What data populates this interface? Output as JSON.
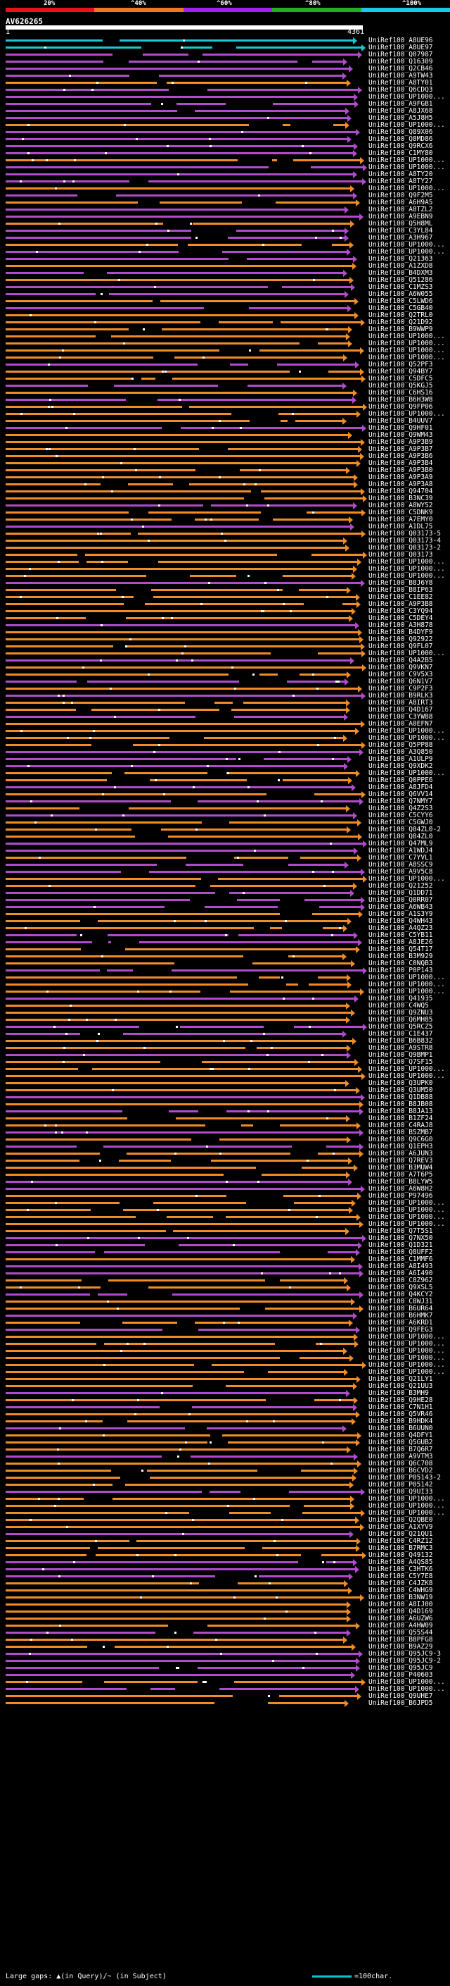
{
  "header": {
    "scale_labels": [
      "20%",
      "^40%",
      "^60%",
      "^80%",
      "^100%"
    ],
    "scale_colors": [
      "#e8101c",
      "#f07820",
      "#a020f0",
      "#20b020",
      "#20c8e8"
    ],
    "query_id": "AV626265",
    "ruler_start": "1",
    "ruler_end": "4361"
  },
  "colors": {
    "cyan": "#1cc8d0",
    "orange": "#f08c28",
    "purple": "#b04ccc",
    "gap": "#ffffff"
  },
  "hits": [
    {
      "label": "UniRef100_A8UE96",
      "color": "cyan"
    },
    {
      "label": "UniRef100_A8UE97",
      "color": "cyan"
    },
    {
      "label": "UniRef100_Q07987",
      "color": "purple"
    },
    {
      "label": "UniRef100_Q16309",
      "color": "purple"
    },
    {
      "label": "UniRef100_Q2CB46",
      "color": "purple"
    },
    {
      "label": "UniRef100_A9TW43",
      "color": "purple"
    },
    {
      "label": "UniRef100_A8TY01",
      "color": "orange"
    },
    {
      "label": "UniRef100_Q6CDQ3",
      "color": "purple"
    },
    {
      "label": "UniRef100_UP1000...",
      "color": "purple"
    },
    {
      "label": "UniRef100_A9FGB1",
      "color": "purple"
    },
    {
      "label": "UniRef100_A8JX68",
      "color": "purple"
    },
    {
      "label": "UniRef100_A5J8H5",
      "color": "purple"
    },
    {
      "label": "UniRef100_UP1000...",
      "color": "orange"
    },
    {
      "label": "UniRef100_Q89X06",
      "color": "purple"
    },
    {
      "label": "UniRef100_Q8MD86",
      "color": "purple"
    },
    {
      "label": "UniRef100_Q9RCX6",
      "color": "purple"
    },
    {
      "label": "UniRef100_C1MY80",
      "color": "purple"
    },
    {
      "label": "UniRef100_UP1000...",
      "color": "orange"
    },
    {
      "label": "UniRef100_UP1000...",
      "color": "purple"
    },
    {
      "label": "UniRef100_A8TY20",
      "color": "purple"
    },
    {
      "label": "UniRef100_A8TY27",
      "color": "purple"
    },
    {
      "label": "UniRef100_UP1000...",
      "color": "orange"
    },
    {
      "label": "UniRef100_Q9F2M5",
      "color": "purple"
    },
    {
      "label": "UniRef100_A6H9A5",
      "color": "orange"
    },
    {
      "label": "UniRef100_A8TZL2",
      "color": "purple"
    },
    {
      "label": "UniRef100_A9EBN9",
      "color": "purple"
    },
    {
      "label": "UniRef100_Q5H8ML",
      "color": "orange"
    },
    {
      "label": "UniRef100_C3YL84",
      "color": "purple"
    },
    {
      "label": "UniRef100_A3H967",
      "color": "purple"
    },
    {
      "label": "UniRef100_UP1000...",
      "color": "orange"
    },
    {
      "label": "UniRef100_UP1000...",
      "color": "purple"
    },
    {
      "label": "UniRef100_Q21363",
      "color": "purple"
    },
    {
      "label": "UniRef100_A1ZXD8",
      "color": "orange"
    },
    {
      "label": "UniRef100_B4DXM3",
      "color": "purple"
    },
    {
      "label": "UniRef100_Q51286",
      "color": "orange"
    },
    {
      "label": "UniRef100_C1MZS3",
      "color": "purple"
    },
    {
      "label": "UniRef100_A6W055",
      "color": "purple"
    },
    {
      "label": "UniRef100_C5LWD6",
      "color": "orange"
    },
    {
      "label": "UniRef100_C5GB40",
      "color": "purple"
    },
    {
      "label": "UniRef100_Q2TRL0",
      "color": "orange"
    },
    {
      "label": "UniRef100_Q21D92",
      "color": "orange"
    },
    {
      "label": "UniRef100_B9WWP9",
      "color": "orange"
    },
    {
      "label": "UniRef100_UP1000...",
      "color": "orange"
    },
    {
      "label": "UniRef100_UP1000...",
      "color": "orange"
    },
    {
      "label": "UniRef100_UP1000...",
      "color": "orange"
    },
    {
      "label": "UniRef100_UP1000...",
      "color": "orange"
    },
    {
      "label": "UniRef100_Q52PF3",
      "color": "purple"
    },
    {
      "label": "UniRef100_Q94BY7",
      "color": "orange"
    },
    {
      "label": "UniRef100_C5DFC5",
      "color": "orange"
    },
    {
      "label": "UniRef100_Q5KGJ5",
      "color": "purple"
    },
    {
      "label": "UniRef100_C6HS16",
      "color": "orange"
    },
    {
      "label": "UniRef100_B6H3W8",
      "color": "purple"
    },
    {
      "label": "UniRef100_Q9FP06",
      "color": "orange"
    },
    {
      "label": "UniRef100_UP1000...",
      "color": "orange"
    },
    {
      "label": "UniRef100_B4UUV7",
      "color": "orange"
    },
    {
      "label": "UniRef100_Q9HF01",
      "color": "purple"
    },
    {
      "label": "UniRef100_Q9WM43",
      "color": "orange"
    },
    {
      "label": "UniRef100_A9P3B9",
      "color": "orange"
    },
    {
      "label": "UniRef100_A9P3B7",
      "color": "orange"
    },
    {
      "label": "UniRef100_A9P3B6",
      "color": "orange"
    },
    {
      "label": "UniRef100_A9P3B4",
      "color": "orange"
    },
    {
      "label": "UniRef100_A9P3B0",
      "color": "orange"
    },
    {
      "label": "UniRef100_A9P3A9",
      "color": "orange"
    },
    {
      "label": "UniRef100_A9P3A8",
      "color": "orange"
    },
    {
      "label": "UniRef100_Q94704",
      "color": "orange"
    },
    {
      "label": "UniRef100_B3NC39",
      "color": "orange"
    },
    {
      "label": "UniRef100_A8WY52",
      "color": "purple"
    },
    {
      "label": "UniRef100_C5DNK9",
      "color": "orange"
    },
    {
      "label": "UniRef100_A7EMY0",
      "color": "orange"
    },
    {
      "label": "UniRef100_A1DL75",
      "color": "purple"
    },
    {
      "label": "UniRef100_Q03173-5",
      "color": "orange"
    },
    {
      "label": "UniRef100_Q03173-4",
      "color": "orange"
    },
    {
      "label": "UniRef100_Q03173-2",
      "color": "orange"
    },
    {
      "label": "UniRef100_Q03173",
      "color": "orange"
    },
    {
      "label": "UniRef100_UP1000...",
      "color": "orange"
    },
    {
      "label": "UniRef100_UP1000...",
      "color": "orange"
    },
    {
      "label": "UniRef100_UP1000...",
      "color": "orange"
    },
    {
      "label": "UniRef100_B8J6Y8",
      "color": "purple"
    },
    {
      "label": "UniRef100_B8IP63",
      "color": "orange"
    },
    {
      "label": "UniRef100_C1EE82",
      "color": "orange"
    },
    {
      "label": "UniRef100_A9P3B8",
      "color": "orange"
    },
    {
      "label": "UniRef100_C3YQ94",
      "color": "orange"
    },
    {
      "label": "UniRef100_C5DEY4",
      "color": "orange"
    },
    {
      "label": "UniRef100_A3H878",
      "color": "purple"
    },
    {
      "label": "UniRef100_B4DYF9",
      "color": "orange"
    },
    {
      "label": "UniRef100_Q92922",
      "color": "orange"
    },
    {
      "label": "UniRef100_Q9FL07",
      "color": "orange"
    },
    {
      "label": "UniRef100_UP1000...",
      "color": "orange"
    },
    {
      "label": "UniRef100_Q4A2B5",
      "color": "purple"
    },
    {
      "label": "UniRef100_Q9VKN7",
      "color": "orange"
    },
    {
      "label": "UniRef100_C9V5X3",
      "color": "orange"
    },
    {
      "label": "UniRef100_Q6N1V7",
      "color": "purple"
    },
    {
      "label": "UniRef100_C9P2F3",
      "color": "orange"
    },
    {
      "label": "UniRef100_B9RLK3",
      "color": "purple"
    },
    {
      "label": "UniRef100_A8IRT3",
      "color": "orange"
    },
    {
      "label": "UniRef100_Q4D167",
      "color": "orange"
    },
    {
      "label": "UniRef100_C3YW88",
      "color": "purple"
    },
    {
      "label": "UniRef100_A0EFN7",
      "color": "orange"
    },
    {
      "label": "UniRef100_UP1000...",
      "color": "orange"
    },
    {
      "label": "UniRef100_UP1000...",
      "color": "orange"
    },
    {
      "label": "UniRef100_Q5PP88",
      "color": "orange"
    },
    {
      "label": "UniRef100_A3Q850",
      "color": "purple"
    },
    {
      "label": "UniRef100_A1ULP9",
      "color": "purple"
    },
    {
      "label": "UniRef100_Q9XDK2",
      "color": "purple"
    },
    {
      "label": "UniRef100_UP1000...",
      "color": "orange"
    },
    {
      "label": "UniRef100_Q0PPE6",
      "color": "orange"
    },
    {
      "label": "UniRef100_A8JFD4",
      "color": "purple"
    },
    {
      "label": "UniRef100_Q6VV14",
      "color": "orange"
    },
    {
      "label": "UniRef100_Q7NMY7",
      "color": "purple"
    },
    {
      "label": "UniRef100_Q4Z2S3",
      "color": "orange"
    },
    {
      "label": "UniRef100_C5CYY6",
      "color": "purple"
    },
    {
      "label": "UniRef100_C5GWJ0",
      "color": "orange"
    },
    {
      "label": "UniRef100_Q84ZL0-2",
      "color": "orange"
    },
    {
      "label": "UniRef100_Q84ZL0",
      "color": "orange"
    },
    {
      "label": "UniRef100_Q47ML9",
      "color": "purple"
    },
    {
      "label": "UniRef100_A1WDJ4",
      "color": "purple"
    },
    {
      "label": "UniRef100_C7YVL1",
      "color": "orange"
    },
    {
      "label": "UniRef100_A8SSC9",
      "color": "purple"
    },
    {
      "label": "UniRef100_A9V5C8",
      "color": "purple"
    },
    {
      "label": "UniRef100_UP1000...",
      "color": "orange"
    },
    {
      "label": "UniRef100_Q21252",
      "color": "orange"
    },
    {
      "label": "UniRef100_Q1DD71",
      "color": "purple"
    },
    {
      "label": "UniRef100_Q0RR07",
      "color": "purple"
    },
    {
      "label": "UniRef100_A6WB43",
      "color": "purple"
    },
    {
      "label": "UniRef100_A1S3Y9",
      "color": "orange"
    },
    {
      "label": "UniRef100_Q4WH43",
      "color": "orange"
    },
    {
      "label": "UniRef100_A4QZ23",
      "color": "orange"
    },
    {
      "label": "UniRef100_C5YB11",
      "color": "purple"
    },
    {
      "label": "UniRef100_A8JE26",
      "color": "purple"
    },
    {
      "label": "UniRef100_Q54T17",
      "color": "orange"
    },
    {
      "label": "UniRef100_B3M929",
      "color": "orange"
    },
    {
      "label": "UniRef100_C0NQB3",
      "color": "orange"
    },
    {
      "label": "UniRef100_P0P143",
      "color": "purple"
    },
    {
      "label": "UniRef100_UP1000...",
      "color": "orange"
    },
    {
      "label": "UniRef100_UP1000...",
      "color": "orange"
    },
    {
      "label": "UniRef100_UP1000...",
      "color": "orange"
    },
    {
      "label": "UniRef100_Q41935",
      "color": "purple"
    },
    {
      "label": "UniRef100_C4WQ5",
      "color": "orange"
    },
    {
      "label": "UniRef100_Q9ZNU3",
      "color": "orange"
    },
    {
      "label": "UniRef100_Q6MH85",
      "color": "orange"
    },
    {
      "label": "UniRef100_Q5RCZ5",
      "color": "purple"
    },
    {
      "label": "UniRef100_C1E437",
      "color": "purple"
    },
    {
      "label": "UniRef100_B6B832",
      "color": "orange"
    },
    {
      "label": "UniRef100_A9STR8",
      "color": "orange"
    },
    {
      "label": "UniRef100_Q9BMP1",
      "color": "purple"
    },
    {
      "label": "UniRef100_Q7SF15",
      "color": "orange"
    },
    {
      "label": "UniRef100_UP1000...",
      "color": "orange"
    },
    {
      "label": "UniRef100_UP1000...",
      "color": "orange"
    },
    {
      "label": "UniRef100_Q3UPK0",
      "color": "orange"
    },
    {
      "label": "UniRef100_Q3UM50",
      "color": "orange"
    },
    {
      "label": "UniRef100_Q1DB88",
      "color": "purple"
    },
    {
      "label": "UniRef100_B8JB08",
      "color": "orange"
    },
    {
      "label": "UniRef100_B8JA13",
      "color": "purple"
    },
    {
      "label": "UniRef100_B1ZF24",
      "color": "orange"
    },
    {
      "label": "UniRef100_C4RAJ8",
      "color": "orange"
    },
    {
      "label": "UniRef100_B5ZMB7",
      "color": "purple"
    },
    {
      "label": "UniRef100_Q9C6G0",
      "color": "orange"
    },
    {
      "label": "UniRef100_Q1EPH3",
      "color": "purple"
    },
    {
      "label": "UniRef100_A6JUN3",
      "color": "orange"
    },
    {
      "label": "UniRef100_Q7REV3",
      "color": "orange"
    },
    {
      "label": "UniRef100_B3MUW4",
      "color": "orange"
    },
    {
      "label": "UniRef100_A7T6P5",
      "color": "orange"
    },
    {
      "label": "UniRef100_B8LYW5",
      "color": "purple"
    },
    {
      "label": "UniRef100_A6W8H2",
      "color": "purple"
    },
    {
      "label": "UniRef100_P97496",
      "color": "orange"
    },
    {
      "label": "UniRef100_UP1000...",
      "color": "orange"
    },
    {
      "label": "UniRef100_UP1000...",
      "color": "orange"
    },
    {
      "label": "UniRef100_UP1000...",
      "color": "orange"
    },
    {
      "label": "UniRef100_UP1000...",
      "color": "orange"
    },
    {
      "label": "UniRef100_Q7T5S1",
      "color": "orange"
    },
    {
      "label": "UniRef100_Q7NX50",
      "color": "purple"
    },
    {
      "label": "UniRef100_Q1D321",
      "color": "purple"
    },
    {
      "label": "UniRef100_Q8UFF2",
      "color": "purple"
    },
    {
      "label": "UniRef100_C1MMF6",
      "color": "orange"
    },
    {
      "label": "UniRef100_A8I493",
      "color": "purple"
    },
    {
      "label": "UniRef100_A6I490",
      "color": "purple"
    },
    {
      "label": "UniRef100_C8Z962",
      "color": "orange"
    },
    {
      "label": "UniRef100_Q9XSL5",
      "color": "orange"
    },
    {
      "label": "UniRef100_Q4KCY2",
      "color": "purple"
    },
    {
      "label": "UniRef100_C8WJ31",
      "color": "orange"
    },
    {
      "label": "UniRef100_B6UR64",
      "color": "orange"
    },
    {
      "label": "UniRef100_B6HMK7",
      "color": "purple"
    },
    {
      "label": "UniRef100_A6KRD1",
      "color": "orange"
    },
    {
      "label": "UniRef100_Q9FEG3",
      "color": "purple"
    },
    {
      "label": "UniRef100_UP1000...",
      "color": "orange"
    },
    {
      "label": "UniRef100_UP1000...",
      "color": "orange"
    },
    {
      "label": "UniRef100_UP1000...",
      "color": "orange"
    },
    {
      "label": "UniRef100_UP1000...",
      "color": "orange"
    },
    {
      "label": "UniRef100_UP1000...",
      "color": "orange"
    },
    {
      "label": "UniRef100_UP1000...",
      "color": "orange"
    },
    {
      "label": "UniRef100_Q21LY1",
      "color": "orange"
    },
    {
      "label": "UniRef100_Q21UU3",
      "color": "orange"
    },
    {
      "label": "UniRef100_B3MH9",
      "color": "purple"
    },
    {
      "label": "UniRef100_Q9HE28",
      "color": "orange"
    },
    {
      "label": "UniRef100_C7N1H1",
      "color": "purple"
    },
    {
      "label": "UniRef100_Q5VR46",
      "color": "orange"
    },
    {
      "label": "UniRef100_B9HDK4",
      "color": "orange"
    },
    {
      "label": "UniRef100_B6UUN0",
      "color": "purple"
    },
    {
      "label": "UniRef100_Q4DFY1",
      "color": "orange"
    },
    {
      "label": "UniRef100_Q5GUB2",
      "color": "orange"
    },
    {
      "label": "UniRef100_B7Q6R7",
      "color": "orange"
    },
    {
      "label": "UniRef100_A9VTM3",
      "color": "purple"
    },
    {
      "label": "UniRef100_Q6C708",
      "color": "orange"
    },
    {
      "label": "UniRef100_B6CVD2",
      "color": "orange"
    },
    {
      "label": "UniRef100_P05143-2",
      "color": "orange"
    },
    {
      "label": "UniRef100_P05142",
      "color": "orange"
    },
    {
      "label": "UniRef100_Q9UI33",
      "color": "purple"
    },
    {
      "label": "UniRef100_UP1000...",
      "color": "orange"
    },
    {
      "label": "UniRef100_UP1000...",
      "color": "orange"
    },
    {
      "label": "UniRef100_UP1000...",
      "color": "orange"
    },
    {
      "label": "UniRef100_Q2QBE0",
      "color": "orange"
    },
    {
      "label": "UniRef100_A1XYV9",
      "color": "orange"
    },
    {
      "label": "UniRef100_Q21QU1",
      "color": "purple"
    },
    {
      "label": "UniRef100_C4RZ12",
      "color": "orange"
    },
    {
      "label": "UniRef100_B7RMC3",
      "color": "orange"
    },
    {
      "label": "UniRef100_Q49132",
      "color": "orange"
    },
    {
      "label": "UniRef100_A4QS85",
      "color": "purple"
    },
    {
      "label": "UniRef100_C3HTK6",
      "color": "purple"
    },
    {
      "label": "UniRef100_C5Y7E8",
      "color": "purple"
    },
    {
      "label": "UniRef100_C4JZK8",
      "color": "orange"
    },
    {
      "label": "UniRef100_C4WHG9",
      "color": "orange"
    },
    {
      "label": "UniRef100_B3NW19",
      "color": "orange"
    },
    {
      "label": "UniRef100_A8IJ00",
      "color": "orange"
    },
    {
      "label": "UniRef100_Q4D169",
      "color": "orange"
    },
    {
      "label": "UniRef100_A6UZW6",
      "color": "orange"
    },
    {
      "label": "UniRef100_A4HW09",
      "color": "orange"
    },
    {
      "label": "UniRef100_Q55S44",
      "color": "purple"
    },
    {
      "label": "UniRef100_B8PFG8",
      "color": "orange"
    },
    {
      "label": "UniRef100_B9AZ29",
      "color": "orange"
    },
    {
      "label": "UniRef100_Q95JC9-3",
      "color": "purple"
    },
    {
      "label": "UniRef100_Q95JC9-2",
      "color": "purple"
    },
    {
      "label": "UniRef100_Q95JC9",
      "color": "purple"
    },
    {
      "label": "UniRef100_P40603",
      "color": "purple"
    },
    {
      "label": "UniRef100_UP1000...",
      "color": "orange"
    },
    {
      "label": "UniRef100_UP1000...",
      "color": "purple"
    },
    {
      "label": "UniRef100_Q9UHE7",
      "color": "orange"
    },
    {
      "label": "UniRef100_B6JPD5",
      "color": "orange"
    }
  ],
  "footer": {
    "legend_text": "Large gaps: ▲(in Query)/~ (in Subject)",
    "scale_text": "=100char."
  }
}
